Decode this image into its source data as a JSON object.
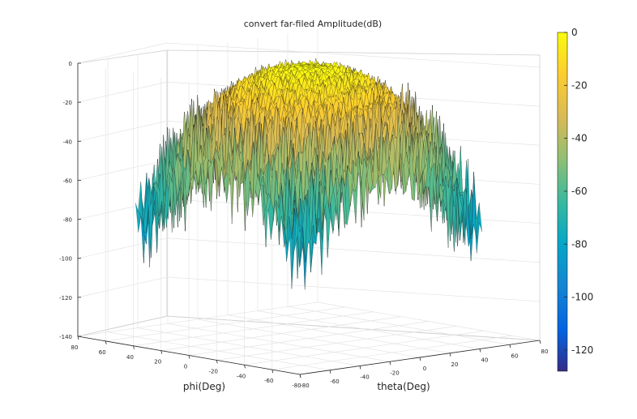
{
  "chart_data": {
    "type": "surface3d",
    "title": "convert far-filed Amplitude(dB)",
    "xlabel": "phi(Deg)",
    "ylabel": "theta(Deg)",
    "zlabel": "",
    "z_ticks": [
      "0",
      "-20",
      "-40",
      "-60",
      "-80",
      "-100",
      "-120",
      "-140"
    ],
    "phi_ticks": [
      "80",
      "60",
      "40",
      "20",
      "0",
      "-20",
      "-40",
      "-60",
      "-80"
    ],
    "theta_ticks": [
      "-80",
      "-60",
      "-40",
      "-20",
      "0",
      "20",
      "40",
      "60",
      "80"
    ],
    "xlim": [
      -80,
      80
    ],
    "ylim": [
      -80,
      80
    ],
    "zlim": [
      -140,
      0
    ],
    "colorbar": {
      "ticks": [
        "0",
        "-20",
        "-40",
        "-60",
        "-80",
        "-100",
        "-120"
      ],
      "range": [
        -128,
        0
      ],
      "colormap": "parula"
    },
    "surface": {
      "peak_dB": 0,
      "edge_floor_dB": -70,
      "min_dB": -128
    },
    "grid": true
  },
  "colors": {
    "parula": [
      "#352a87",
      "#0363e1",
      "#1485d4",
      "#06a7c6",
      "#38b99e",
      "#92bf73",
      "#d9ba56",
      "#fcce2e",
      "#f9fb0e"
    ]
  }
}
